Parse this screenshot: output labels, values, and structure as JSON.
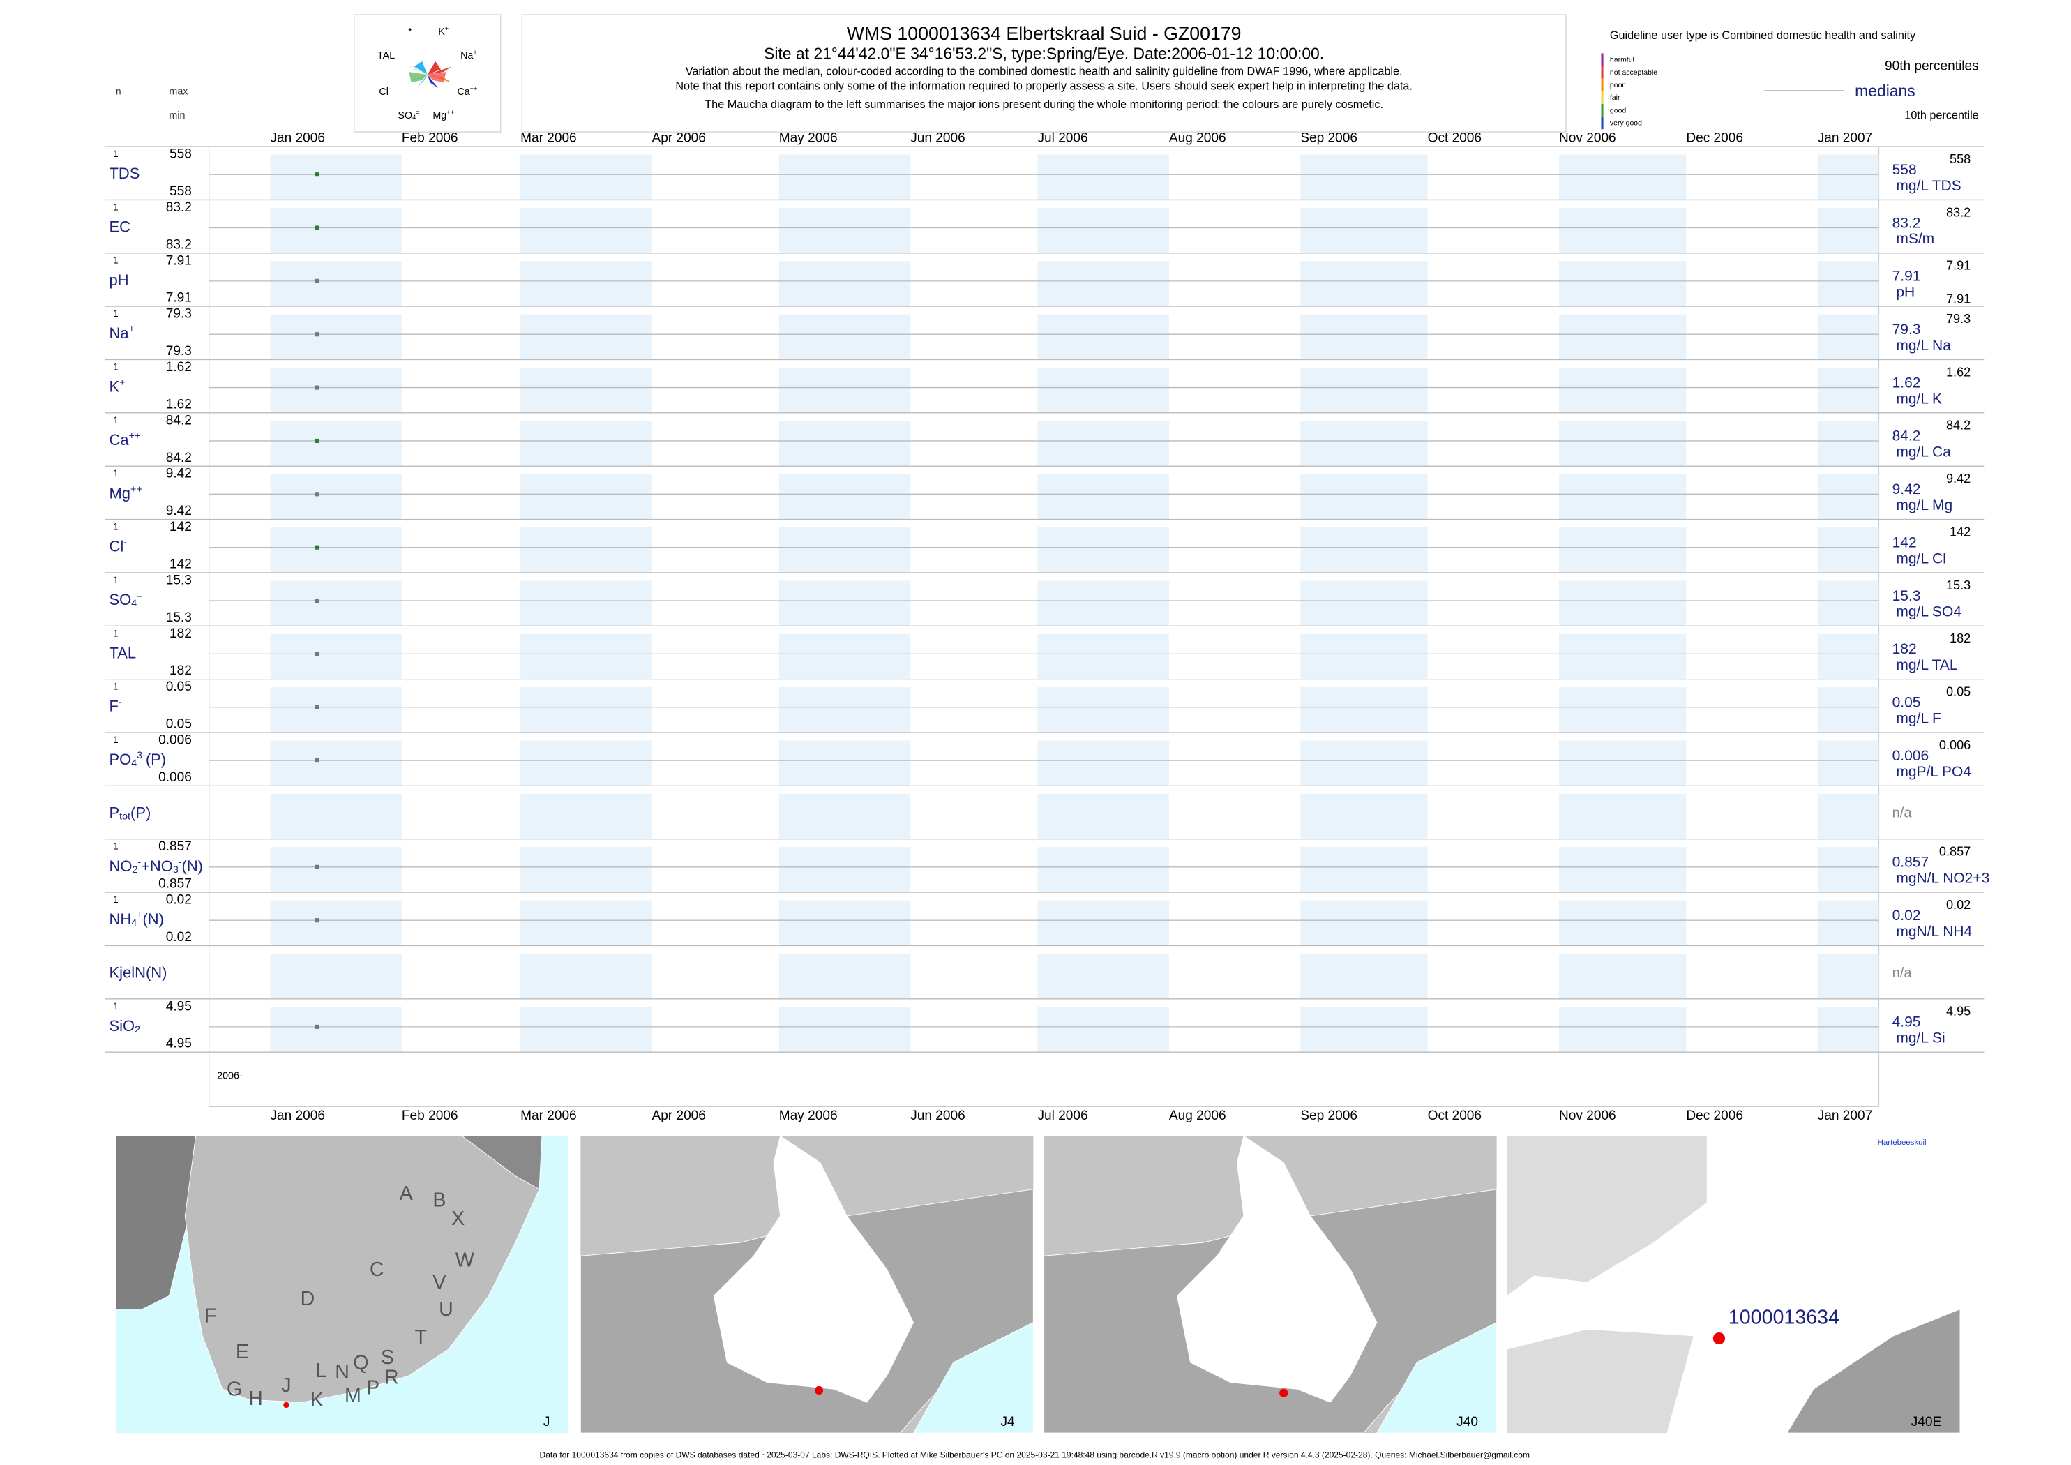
{
  "chart_data": {
    "type": "strip",
    "title": "WMS 1000013634  Elbertskraal Suid - GZ00179",
    "subtitle": "Site at 21°44'42.0\"E 34°16'53.2\"S, type:Spring/Eye. Date:2006-01-12 10:00:00.",
    "notes": [
      "Variation about the median,  colour-coded according to the combined domestic health and salinity guideline from DWAF 1996, where applicable.",
      "Note that this report contains only some of the information required to properly assess a site. Users should seek expert help in interpreting the data.",
      "The Maucha diagram to the left summarises the major ions present during the whole monitoring period: the colours are purely cosmetic."
    ],
    "n_label": "n",
    "max_label": "max",
    "min_label": "min",
    "categories": [
      "Jan 2006",
      "Feb 2006",
      "Mar 2006",
      "Apr 2006",
      "May 2006",
      "Jun 2006",
      "Jul 2006",
      "Aug 2006",
      "Sep 2006",
      "Oct 2006",
      "Nov 2006",
      "Dec 2006",
      "Jan 2007"
    ],
    "sample_date": "2006-01-12",
    "year_label": "2006-",
    "band_color": "#e8f3fc",
    "rows": [
      {
        "label": [
          {
            "t": "TDS"
          }
        ],
        "n": 1,
        "max": 558,
        "min": 558,
        "median": 558,
        "p90": 558,
        "unit": "mg/L TDS",
        "color": "#2e7d32"
      },
      {
        "label": [
          {
            "t": "EC"
          }
        ],
        "n": 1,
        "max": 83.2,
        "min": 83.2,
        "median": 83.2,
        "p90": 83.2,
        "unit": "mS/m",
        "color": "#2e7d32"
      },
      {
        "label": [
          {
            "t": "pH"
          }
        ],
        "n": 1,
        "max": 7.91,
        "min": 7.91,
        "median": 7.91,
        "p90": 7.91,
        "p10": 7.91,
        "unit": "pH",
        "color": "#777777"
      },
      {
        "label": [
          {
            "t": "Na"
          },
          {
            "t": "+",
            "pos": "sup"
          }
        ],
        "n": 1,
        "max": 79.3,
        "min": 79.3,
        "median": 79.3,
        "p90": 79.3,
        "unit": "mg/L Na",
        "color": "#777777"
      },
      {
        "label": [
          {
            "t": "K"
          },
          {
            "t": "+",
            "pos": "sup"
          }
        ],
        "n": 1,
        "max": 1.62,
        "min": 1.62,
        "median": 1.62,
        "p90": 1.62,
        "unit": "mg/L K",
        "color": "#777777"
      },
      {
        "label": [
          {
            "t": "Ca"
          },
          {
            "t": "++",
            "pos": "sup"
          }
        ],
        "n": 1,
        "max": 84.2,
        "min": 84.2,
        "median": 84.2,
        "p90": 84.2,
        "unit": "mg/L Ca",
        "color": "#2e7d32"
      },
      {
        "label": [
          {
            "t": "Mg"
          },
          {
            "t": "++",
            "pos": "sup"
          }
        ],
        "n": 1,
        "max": 9.42,
        "min": 9.42,
        "median": 9.42,
        "p90": 9.42,
        "unit": "mg/L Mg",
        "color": "#777777"
      },
      {
        "label": [
          {
            "t": "Cl"
          },
          {
            "t": "-",
            "pos": "sup"
          }
        ],
        "n": 1,
        "max": 142,
        "min": 142,
        "median": 142,
        "p90": 142,
        "unit": "mg/L Cl",
        "color": "#2e7d32"
      },
      {
        "label": [
          {
            "t": "SO"
          },
          {
            "t": "4",
            "pos": "sub"
          },
          {
            "t": "=",
            "pos": "sup"
          }
        ],
        "n": 1,
        "max": 15.3,
        "min": 15.3,
        "median": 15.3,
        "p90": 15.3,
        "unit": "mg/L SO4",
        "color": "#777777"
      },
      {
        "label": [
          {
            "t": "TAL"
          }
        ],
        "n": 1,
        "max": 182,
        "min": 182,
        "median": 182,
        "p90": 182,
        "unit": "mg/L TAL",
        "color": "#777777"
      },
      {
        "label": [
          {
            "t": "F"
          },
          {
            "t": "-",
            "pos": "sup"
          }
        ],
        "n": 1,
        "max": 0.05,
        "min": 0.05,
        "median": 0.05,
        "p90": 0.05,
        "unit": "mg/L F",
        "color": "#777777"
      },
      {
        "label": [
          {
            "t": "PO"
          },
          {
            "t": "4",
            "pos": "sub"
          },
          {
            "t": "3-",
            "pos": "sup"
          },
          {
            "t": "(P)"
          }
        ],
        "n": 1,
        "max": 0.006,
        "min": 0.006,
        "median": 0.006,
        "p90": 0.006,
        "unit": "mgP/L PO4",
        "color": "#777777"
      },
      {
        "label": [
          {
            "t": "P"
          },
          {
            "t": "tot",
            "pos": "sub"
          },
          {
            "t": "(P)"
          }
        ],
        "status": "n/a"
      },
      {
        "label": [
          {
            "t": "NO"
          },
          {
            "t": "2",
            "pos": "sub"
          },
          {
            "t": "-",
            "pos": "sup"
          },
          {
            "t": "+NO"
          },
          {
            "t": "3",
            "pos": "sub"
          },
          {
            "t": "-",
            "pos": "sup"
          },
          {
            "t": "(N)"
          }
        ],
        "n": 1,
        "max": 0.857,
        "min": 0.857,
        "median": 0.857,
        "p90": 0.857,
        "unit": "mgN/L NO2+3",
        "color": "#777777"
      },
      {
        "label": [
          {
            "t": "NH"
          },
          {
            "t": "4",
            "pos": "sub"
          },
          {
            "t": "+",
            "pos": "sup"
          },
          {
            "t": "(N)"
          }
        ],
        "n": 1,
        "max": 0.02,
        "min": 0.02,
        "median": 0.02,
        "p90": 0.02,
        "unit": "mgN/L NH4",
        "color": "#777777"
      },
      {
        "label": [
          {
            "t": "KjelN(N)"
          }
        ],
        "status": "n/a"
      },
      {
        "label": [
          {
            "t": "SiO"
          },
          {
            "t": "2",
            "pos": "sub"
          }
        ],
        "n": 1,
        "max": 4.95,
        "min": 4.95,
        "median": 4.95,
        "p90": 4.95,
        "unit": "mg/L Si",
        "color": "#777777"
      }
    ]
  },
  "maucha": {
    "labels": [
      [
        {
          "t": "*"
        }
      ],
      [
        {
          "t": "K"
        },
        {
          "t": "+",
          "pos": "sup"
        }
      ],
      [
        {
          "t": "TAL"
        }
      ],
      [
        {
          "t": "Na"
        },
        {
          "t": "+",
          "pos": "sup"
        }
      ],
      [
        {
          "t": "Cl"
        },
        {
          "t": "-",
          "pos": "sup"
        }
      ],
      [
        {
          "t": "Ca"
        },
        {
          "t": "++",
          "pos": "sup"
        }
      ],
      [
        {
          "t": "SO"
        },
        {
          "t": "4",
          "pos": "sub"
        },
        {
          "t": "=",
          "pos": "sup"
        }
      ],
      [
        {
          "t": "Mg"
        },
        {
          "t": "++",
          "pos": "sup"
        }
      ]
    ]
  },
  "guideline": {
    "title": "Guideline user type is Combined domestic health and salinity",
    "classes": [
      {
        "name": "harmful",
        "color": "#9c1c9c"
      },
      {
        "name": "not acceptable",
        "color": "#e53935"
      },
      {
        "name": "poor",
        "color": "#fb8c00"
      },
      {
        "name": "fair",
        "color": "#f4d03f"
      },
      {
        "name": "good",
        "color": "#2e9d3a"
      },
      {
        "name": "very good",
        "color": "#1e3fc8"
      }
    ],
    "p90_label": "90th percentiles",
    "median_label": "medians",
    "p10_label": "10th percentile"
  },
  "maps": [
    {
      "label": "J",
      "letters": [
        "A",
        "B",
        "X",
        "C",
        "W",
        "D",
        "V",
        "U",
        "F",
        "T",
        "E",
        "S",
        "L",
        "N",
        "Q",
        "R",
        "M",
        "P",
        "K",
        "J",
        "G",
        "H"
      ]
    },
    {
      "label": "J4"
    },
    {
      "label": "J40"
    },
    {
      "label": "J40E",
      "site": "1000013634",
      "place": "Hartebeeskuil"
    }
  ],
  "footer": "Data for 1000013634 from copies of DWS databases dated ~2025-03-07 Labs: DWS-RQIS. Plotted at Mike Silberbauer's PC on 2025-03-21 19:48:48 using barcode.R v19.9 (macro option) under R version 4.4.3 (2025-02-28). Queries: Michael.Silberbauer@gmail.com"
}
